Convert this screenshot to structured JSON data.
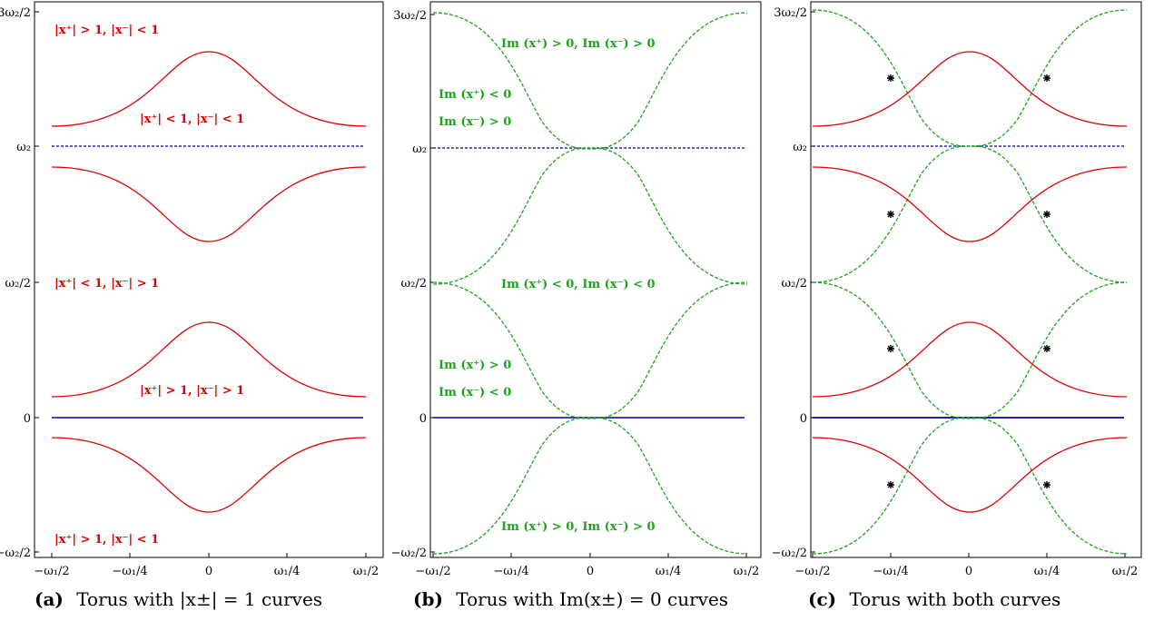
{
  "ticks": {
    "y": {
      "y3w2h": "3ω₂/2",
      "yw2": "ω₂",
      "yw2h": "ω₂/2",
      "y0": "0",
      "ymw2h": "−ω₂/2"
    },
    "x": {
      "xm2": "−ω₁/2",
      "xm4": "−ω₁/4",
      "x0": "0",
      "xp4": "ω₁/4",
      "xp2": "ω₁/2"
    }
  },
  "colors": {
    "red": "#dd0000",
    "green": "#1aa51a",
    "blue": "#0000aa",
    "marker": "#000000"
  },
  "panel_a": {
    "caption_letter": "(a)",
    "caption_text": "Torus with |x±| = 1 curves",
    "region_labels": {
      "top": "|x⁺| > 1,  |x⁻| < 1",
      "upper_mid": "|x⁺| < 1,  |x⁻| < 1",
      "lower_mid": "|x⁺| < 1,  |x⁻| > 1",
      "center": "|x⁺| > 1,  |x⁻| > 1",
      "bottom": "|x⁺| > 1,  |x⁻| < 1"
    }
  },
  "panel_b": {
    "caption_letter": "(b)",
    "caption_text": "Torus with Im(x±) = 0 curves",
    "region_labels": {
      "top": "Im (x⁺) > 0,   Im (x⁻) > 0",
      "left_upper_1": "Im (x⁺) < 0",
      "left_upper_2": "Im (x⁻) > 0",
      "middle": "Im (x⁺) < 0,   Im (x⁻) < 0",
      "left_lower_1": "Im (x⁺) > 0",
      "left_lower_2": "Im (x⁻) < 0",
      "bottom": "Im (x⁺) > 0,   Im (x⁻) > 0"
    }
  },
  "panel_c": {
    "caption_letter": "(c)",
    "caption_text": "Torus with both curves"
  }
}
